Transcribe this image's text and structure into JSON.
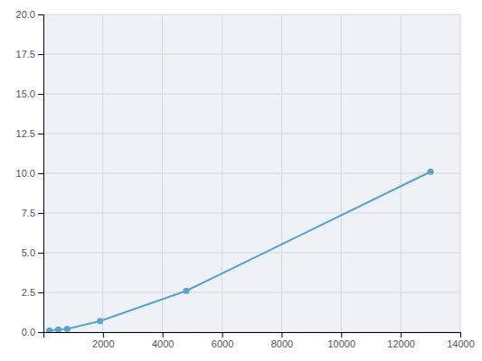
{
  "chart_data": {
    "type": "line",
    "x": [
      200,
      500,
      800,
      1900,
      4800,
      13000
    ],
    "values": [
      0.1,
      0.15,
      0.2,
      0.7,
      2.6,
      10.1
    ],
    "color": "#5ba3c9",
    "marker": "circle",
    "xlim": [
      0,
      14000
    ],
    "ylim": [
      0,
      20.0
    ],
    "xticks": [
      2000,
      4000,
      6000,
      8000,
      10000,
      12000,
      14000
    ],
    "yticks": [
      {
        "value": 0,
        "label": "0.0"
      },
      2.5,
      {
        "value": 5,
        "label": "5.0"
      },
      7.5,
      {
        "value": 10,
        "label": "10.0"
      },
      12.5,
      {
        "value": 15,
        "label": "15.0"
      },
      17.5,
      {
        "value": 20,
        "label": "20.0"
      }
    ],
    "grid": true
  }
}
